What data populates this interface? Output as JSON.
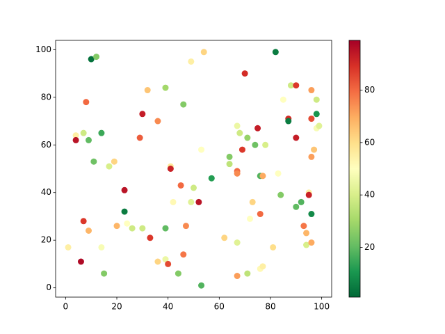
{
  "chart_data": {
    "type": "scatter",
    "x": [
      1,
      4,
      4,
      6,
      7,
      7,
      8,
      9,
      9,
      10,
      12,
      11,
      14,
      14,
      15,
      17,
      19,
      20,
      23,
      23,
      24,
      26,
      29,
      30,
      30,
      32,
      33,
      36,
      36,
      39,
      39,
      39,
      40,
      41,
      41,
      42,
      44,
      45,
      46,
      46,
      47,
      49,
      49,
      50,
      52,
      53,
      53,
      54,
      57,
      62,
      64,
      64,
      67,
      67,
      67,
      67,
      67,
      68,
      69,
      70,
      71,
      71,
      72,
      73,
      74,
      75,
      76,
      76,
      76,
      77,
      77,
      78,
      81,
      82,
      83,
      84,
      85,
      87,
      87,
      88,
      90,
      90,
      90,
      92,
      93,
      94,
      94,
      95,
      95,
      96,
      96,
      96,
      96,
      96,
      97,
      98,
      98,
      98,
      99
    ],
    "y": [
      17,
      64,
      62,
      11,
      65,
      28,
      78,
      62,
      24,
      96,
      97,
      53,
      65,
      17,
      6,
      51,
      53,
      26,
      41,
      32,
      27,
      25,
      63,
      73,
      25,
      83,
      21,
      70,
      11,
      84,
      12,
      25,
      10,
      51,
      50,
      36,
      6,
      43,
      77,
      14,
      26,
      95,
      36,
      42,
      36,
      58,
      1,
      99,
      46,
      21,
      55,
      52,
      68,
      49,
      48,
      19,
      5,
      65,
      58,
      90,
      63,
      6,
      29,
      36,
      60,
      67,
      47,
      31,
      8,
      9,
      47,
      60,
      17,
      99,
      48,
      39,
      79,
      71,
      70,
      85,
      85,
      63,
      34,
      36,
      26,
      23,
      18,
      40,
      39,
      83,
      71,
      55,
      31,
      19,
      58,
      79,
      73,
      67,
      68
    ],
    "c": [
      55,
      55,
      95,
      97,
      38,
      88,
      80,
      20,
      68,
      3,
      25,
      22,
      15,
      48,
      25,
      40,
      62,
      68,
      95,
      5,
      50,
      38,
      82,
      93,
      38,
      65,
      88,
      75,
      62,
      30,
      45,
      20,
      85,
      57,
      92,
      52,
      25,
      80,
      25,
      78,
      75,
      55,
      42,
      38,
      95,
      50,
      18,
      62,
      12,
      62,
      25,
      35,
      45,
      80,
      75,
      42,
      72,
      38,
      88,
      90,
      28,
      35,
      50,
      62,
      22,
      93,
      18,
      80,
      52,
      55,
      70,
      40,
      60,
      5,
      50,
      25,
      50,
      90,
      5,
      38,
      88,
      93,
      20,
      18,
      78,
      68,
      40,
      55,
      92,
      72,
      85,
      72,
      8,
      70,
      65,
      38,
      10,
      48,
      42
    ],
    "colormap": [
      "#006837",
      "#1a9850",
      "#66bd63",
      "#a6d96a",
      "#d9ef8b",
      "#ffffbf",
      "#fee08b",
      "#fdae61",
      "#f46d43",
      "#d73027",
      "#a50026"
    ],
    "xlim": [
      -3.9,
      103.9
    ],
    "ylim": [
      -3.9,
      103.9
    ],
    "xticks": [
      0,
      20,
      40,
      60,
      80,
      100
    ],
    "yticks": [
      0,
      20,
      40,
      60,
      80,
      100
    ],
    "clim": [
      1,
      99
    ],
    "cticks": [
      20,
      40,
      60,
      80
    ]
  }
}
